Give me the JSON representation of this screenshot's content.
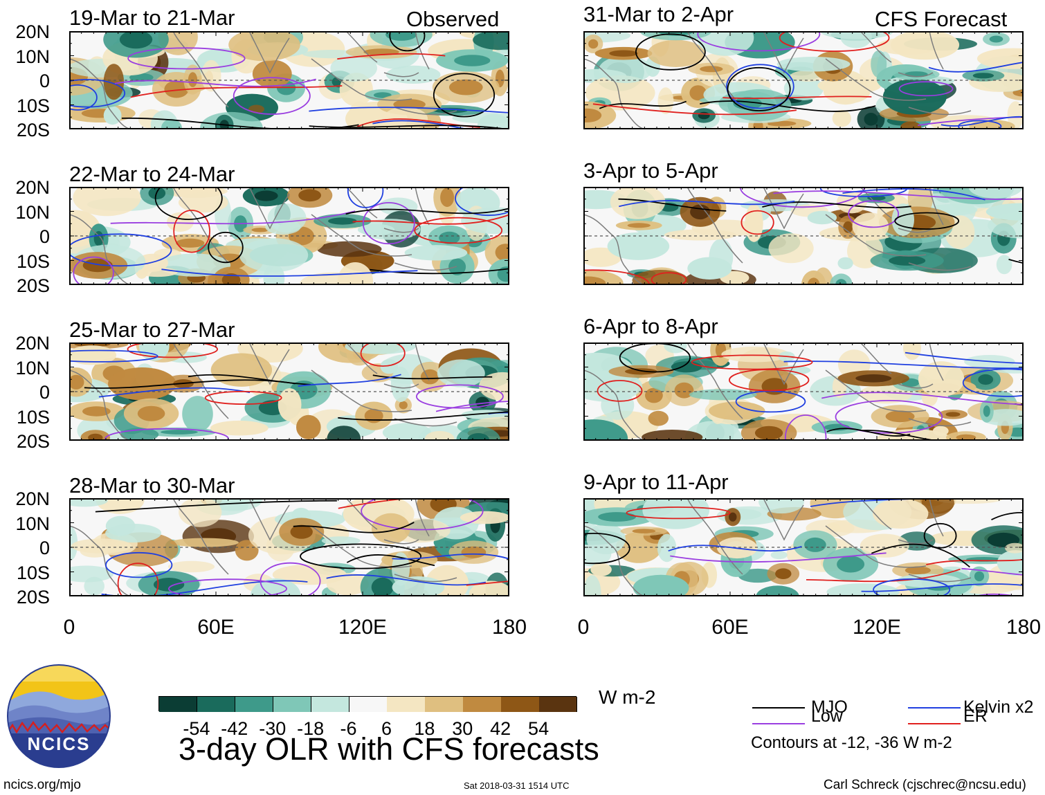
{
  "header": {
    "observed_label": "Observed",
    "forecast_label": "CFS Forecast"
  },
  "panels": {
    "left": [
      {
        "title": "19-Mar to 21-Mar"
      },
      {
        "title": "22-Mar to 24-Mar"
      },
      {
        "title": "25-Mar to 27-Mar"
      },
      {
        "title": "28-Mar to 30-Mar"
      }
    ],
    "right": [
      {
        "title": "31-Mar to 2-Apr"
      },
      {
        "title": "3-Apr to 5-Apr"
      },
      {
        "title": "6-Apr to 8-Apr"
      },
      {
        "title": "9-Apr to 11-Apr"
      }
    ]
  },
  "axes": {
    "lat_ticks": [
      "20N",
      "10N",
      "0",
      "10S",
      "20S"
    ],
    "lon_ticks": [
      "0",
      "60E",
      "120E",
      "180"
    ]
  },
  "colorbar": {
    "labels": [
      "-54",
      "-42",
      "-30",
      "-18",
      "-6",
      "6",
      "18",
      "30",
      "42",
      "54"
    ],
    "colors": [
      "#0b3d34",
      "#1a6b5c",
      "#3e9a8a",
      "#7fc7b7",
      "#c4e7de",
      "#f7f7f7",
      "#f4e6c2",
      "#dfbf80",
      "#c08a40",
      "#8e5716",
      "#5a3410"
    ],
    "units": "W m-2"
  },
  "legend": {
    "mjo": {
      "label": "MJO",
      "color": "#000000"
    },
    "kelvin": {
      "label": "Kelvin x2",
      "color": "#1f3fe0"
    },
    "low": {
      "label": "Low",
      "color": "#9a3ee0"
    },
    "er": {
      "label": "ER",
      "color": "#e0201e"
    },
    "contours_note": "Contours at -12, -36 W m-2"
  },
  "footer": {
    "title": "3-day OLR with CFS forecasts",
    "logo_text": "NCICS",
    "url": "ncics.org/mjo",
    "timestamp": "Sat 2018-03-31 1514 UTC",
    "credit": "Carl Schreck (cjschrec@ncsu.edu)"
  }
}
